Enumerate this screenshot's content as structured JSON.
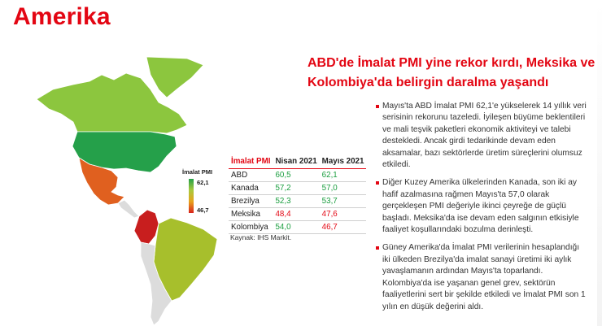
{
  "title": "Amerika",
  "subtitle": "ABD'de İmalat PMI yine rekor kırdı, Meksika ve Kolombiya'da belirgin daralma yaşandı",
  "legend": {
    "title": "İmalat PMI",
    "max": "62,1",
    "min": "46,7"
  },
  "table": {
    "headers": [
      "İmalat PMI",
      "Nisan 2021",
      "Mayıs 2021"
    ],
    "rows": [
      {
        "country": "ABD",
        "apr": "60,5",
        "may": "62,1",
        "apr_trend": "up",
        "may_trend": "up"
      },
      {
        "country": "Kanada",
        "apr": "57,2",
        "may": "57,0",
        "apr_trend": "up",
        "may_trend": "up"
      },
      {
        "country": "Brezilya",
        "apr": "52,3",
        "may": "53,7",
        "apr_trend": "up",
        "may_trend": "up"
      },
      {
        "country": "Meksika",
        "apr": "48,4",
        "may": "47,6",
        "apr_trend": "down",
        "may_trend": "down"
      },
      {
        "country": "Kolombiya",
        "apr": "54,0",
        "may": "46,7",
        "apr_trend": "up",
        "may_trend": "down"
      }
    ],
    "source": "Kaynak: IHS Markit."
  },
  "bullets": [
    "Mayıs'ta ABD İmalat PMI 62,1'e yükselerek 14 yıllık veri serisinin rekorunu tazeledi. İyileşen büyüme beklentileri ve mali teşvik paketleri ekonomik aktiviteyi ve talebi destekledi. Ancak girdi tedarikinde devam eden aksamalar, bazı sektörlerde üretim süreçlerini olumsuz etkiledi.",
    "Diğer Kuzey Amerika ülkelerinden Kanada, son iki ay hafif azalmasına rağmen Mayıs'ta 57,0 olarak gerçekleşen PMI değeriyle ikinci çeyreğe de güçlü başladı. Meksika'da ise devam eden salgının etkisiyle faaliyet koşullarındaki bozulma derinleşti.",
    "Güney Amerika'da İmalat PMI verilerinin hesaplandığı iki ülkeden Brezilya'da imalat sanayi üretimi iki aylık yavaşlamanın ardından Mayıs'ta toparlandı. Kolombiya'da ise yaşanan genel grev, sektörün faaliyetlerini sert bir şekilde etkiledi ve İmalat PMI son 1 yılın en düşük değerini aldı."
  ],
  "colors": {
    "accent": "#e30613",
    "canada": "#8cc63e",
    "usa": "#25a04a",
    "mexico": "#e0601f",
    "colombia": "#c81e1e",
    "brazil": "#a7bf2c",
    "greenland": "#8cc63e",
    "south_america_other": "#dcdcdc",
    "central_america": "#dcdcdc"
  }
}
